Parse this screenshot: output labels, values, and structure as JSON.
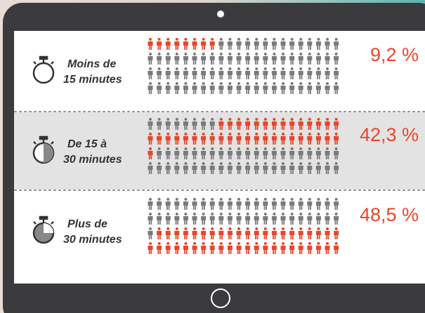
{
  "chart_data": {
    "type": "pictogram",
    "categories": [
      [
        "Moins de",
        "15 minutes"
      ],
      [
        "De 15 à",
        "30 minutes"
      ],
      [
        "Plus de",
        "30 minutes"
      ]
    ],
    "values": [
      9.2,
      42.3,
      48.5
    ],
    "value_labels": [
      "9,2 %",
      "42,3 %",
      "48,5 %"
    ],
    "color": "#e8462a",
    "base_color": "#7a7a7a"
  }
}
